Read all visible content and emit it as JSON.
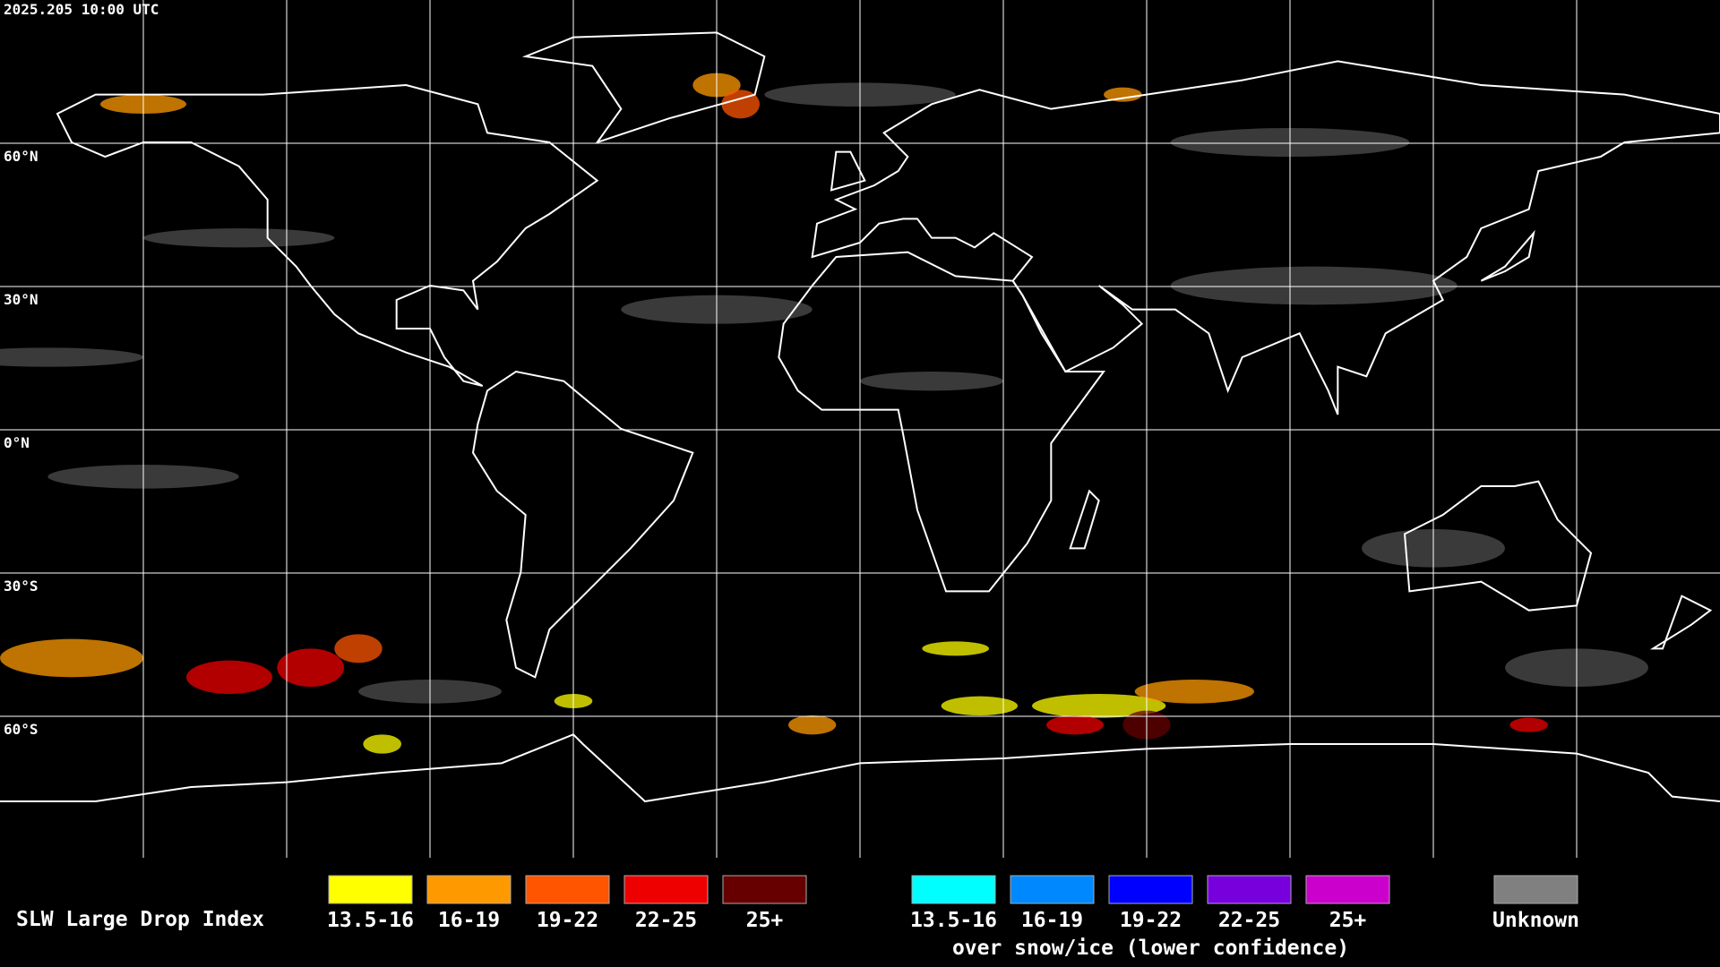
{
  "header": {
    "timestamp": "2025.205 10:00 UTC"
  },
  "map": {
    "latitude_labels": [
      "60°N",
      "30°N",
      "0°N",
      "30°S",
      "60°S"
    ]
  },
  "legend": {
    "title": "SLW Large Drop Index",
    "groups": [
      {
        "items": [
          {
            "label": "13.5-16",
            "color": "#ffff00"
          },
          {
            "label": "16-19",
            "color": "#ff9900"
          },
          {
            "label": "19-22",
            "color": "#ff5500"
          },
          {
            "label": "22-25",
            "color": "#ee0000"
          },
          {
            "label": "25+",
            "color": "#660000"
          }
        ]
      },
      {
        "items": [
          {
            "label": "13.5-16",
            "color": "#00ffff"
          },
          {
            "label": "16-19",
            "color": "#0088ff"
          },
          {
            "label": "19-22",
            "color": "#0000ff"
          },
          {
            "label": "22-25",
            "color": "#7700dd"
          },
          {
            "label": "25+",
            "color": "#cc00cc"
          }
        ],
        "caption": "over snow/ice (lower confidence)"
      },
      {
        "items": [
          {
            "label": "Unknown",
            "color": "#808080"
          }
        ]
      }
    ]
  }
}
